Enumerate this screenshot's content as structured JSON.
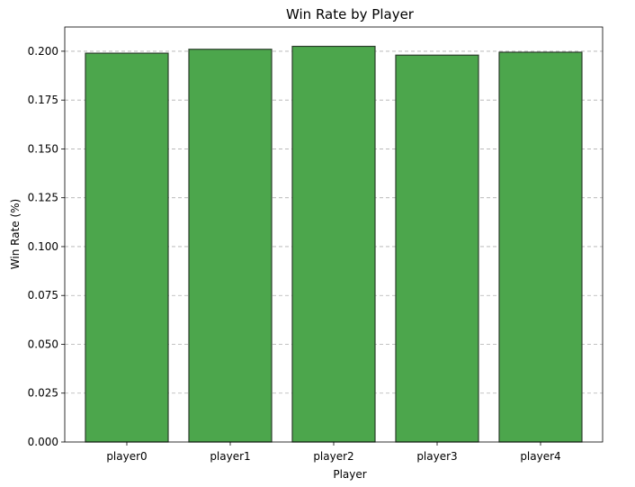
{
  "chart_data": {
    "type": "bar",
    "title": "Win Rate by Player",
    "xlabel": "Player",
    "ylabel": "Win Rate (%)",
    "categories": [
      "player0",
      "player1",
      "player2",
      "player3",
      "player4"
    ],
    "values": [
      0.199,
      0.201,
      0.2025,
      0.198,
      0.1995
    ],
    "ylim": [
      0,
      0.2124
    ],
    "yticks": [
      "0.000",
      "0.025",
      "0.050",
      "0.075",
      "0.100",
      "0.125",
      "0.150",
      "0.175",
      "0.200"
    ],
    "grid": "y-dashed",
    "bar_color": "#4ca64c",
    "edge_color": "#2c3e2c"
  }
}
